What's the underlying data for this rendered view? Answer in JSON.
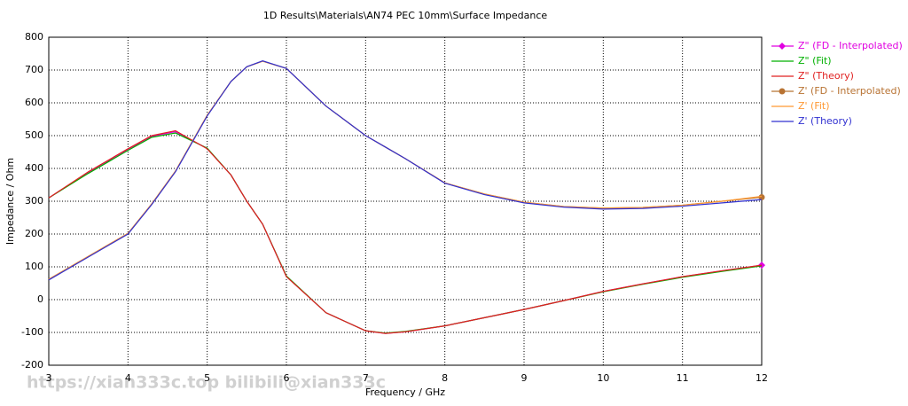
{
  "chart_data": {
    "type": "line",
    "title": "1D Results\\Materials\\AN74 PEC 10mm\\Surface Impedance",
    "x_label": "Frequency / GHz",
    "y_label": "Impedance / Ohm",
    "annotation": "https://xian333c.top bilibili@xian333c",
    "x": [
      3,
      3.5,
      4,
      4.3,
      4.6,
      5,
      5.3,
      5.5,
      5.7,
      6,
      6.5,
      7,
      7.25,
      7.5,
      8,
      8.5,
      9,
      9.5,
      10,
      10.5,
      11,
      11.5,
      12
    ],
    "xlim": [
      3,
      12
    ],
    "xticks": [
      3,
      4,
      5,
      6,
      7,
      8,
      9,
      10,
      11,
      12
    ],
    "ylim": [
      -200,
      800
    ],
    "yticks": [
      -200,
      -100,
      0,
      100,
      200,
      300,
      400,
      500,
      600,
      700,
      800
    ],
    "grid": true,
    "legend": "right",
    "series": [
      {
        "name": "Z\" (FD - Interpolated)",
        "color": "#e000e0",
        "marker": "diamond",
        "values": [
          310,
          388,
          458,
          498,
          512,
          461,
          380,
          300,
          230,
          71,
          -40,
          -95,
          -103,
          -98,
          -80,
          -55,
          -30,
          -3,
          25,
          48,
          70,
          88,
          105
        ]
      },
      {
        "name": "Z\" (Fit)",
        "color": "#00b000",
        "values": [
          310,
          385,
          455,
          495,
          508,
          462,
          380,
          300,
          230,
          72,
          -40,
          -95,
          -102,
          -97,
          -80,
          -55,
          -30,
          -3,
          24,
          47,
          68,
          86,
          103
        ]
      },
      {
        "name": "Z\" (Theory)",
        "color": "#e02020",
        "values": [
          310,
          390,
          460,
          500,
          515,
          460,
          380,
          300,
          230,
          70,
          -40,
          -95,
          -103,
          -98,
          -80,
          -55,
          -30,
          -3,
          25,
          48,
          70,
          88,
          105
        ]
      },
      {
        "name": "Z' (FD - Interpolated)",
        "color": "#b87333",
        "marker": "circle",
        "values": [
          62,
          132,
          202,
          292,
          392,
          562,
          665,
          710,
          727,
          705,
          590,
          500,
          465,
          430,
          356,
          322,
          297,
          284,
          279,
          281,
          288,
          300,
          312
        ]
      },
      {
        "name": "Z' (Fit)",
        "color": "#ff9933",
        "values": [
          62,
          132,
          202,
          292,
          392,
          562,
          665,
          710,
          727,
          705,
          590,
          500,
          465,
          430,
          356,
          322,
          297,
          284,
          279,
          281,
          288,
          300,
          315
        ]
      },
      {
        "name": "Z' (Theory)",
        "color": "#3030d0",
        "values": [
          60,
          130,
          200,
          290,
          390,
          560,
          665,
          710,
          728,
          705,
          590,
          500,
          465,
          430,
          355,
          320,
          295,
          282,
          276,
          278,
          285,
          295,
          305
        ]
      }
    ]
  }
}
